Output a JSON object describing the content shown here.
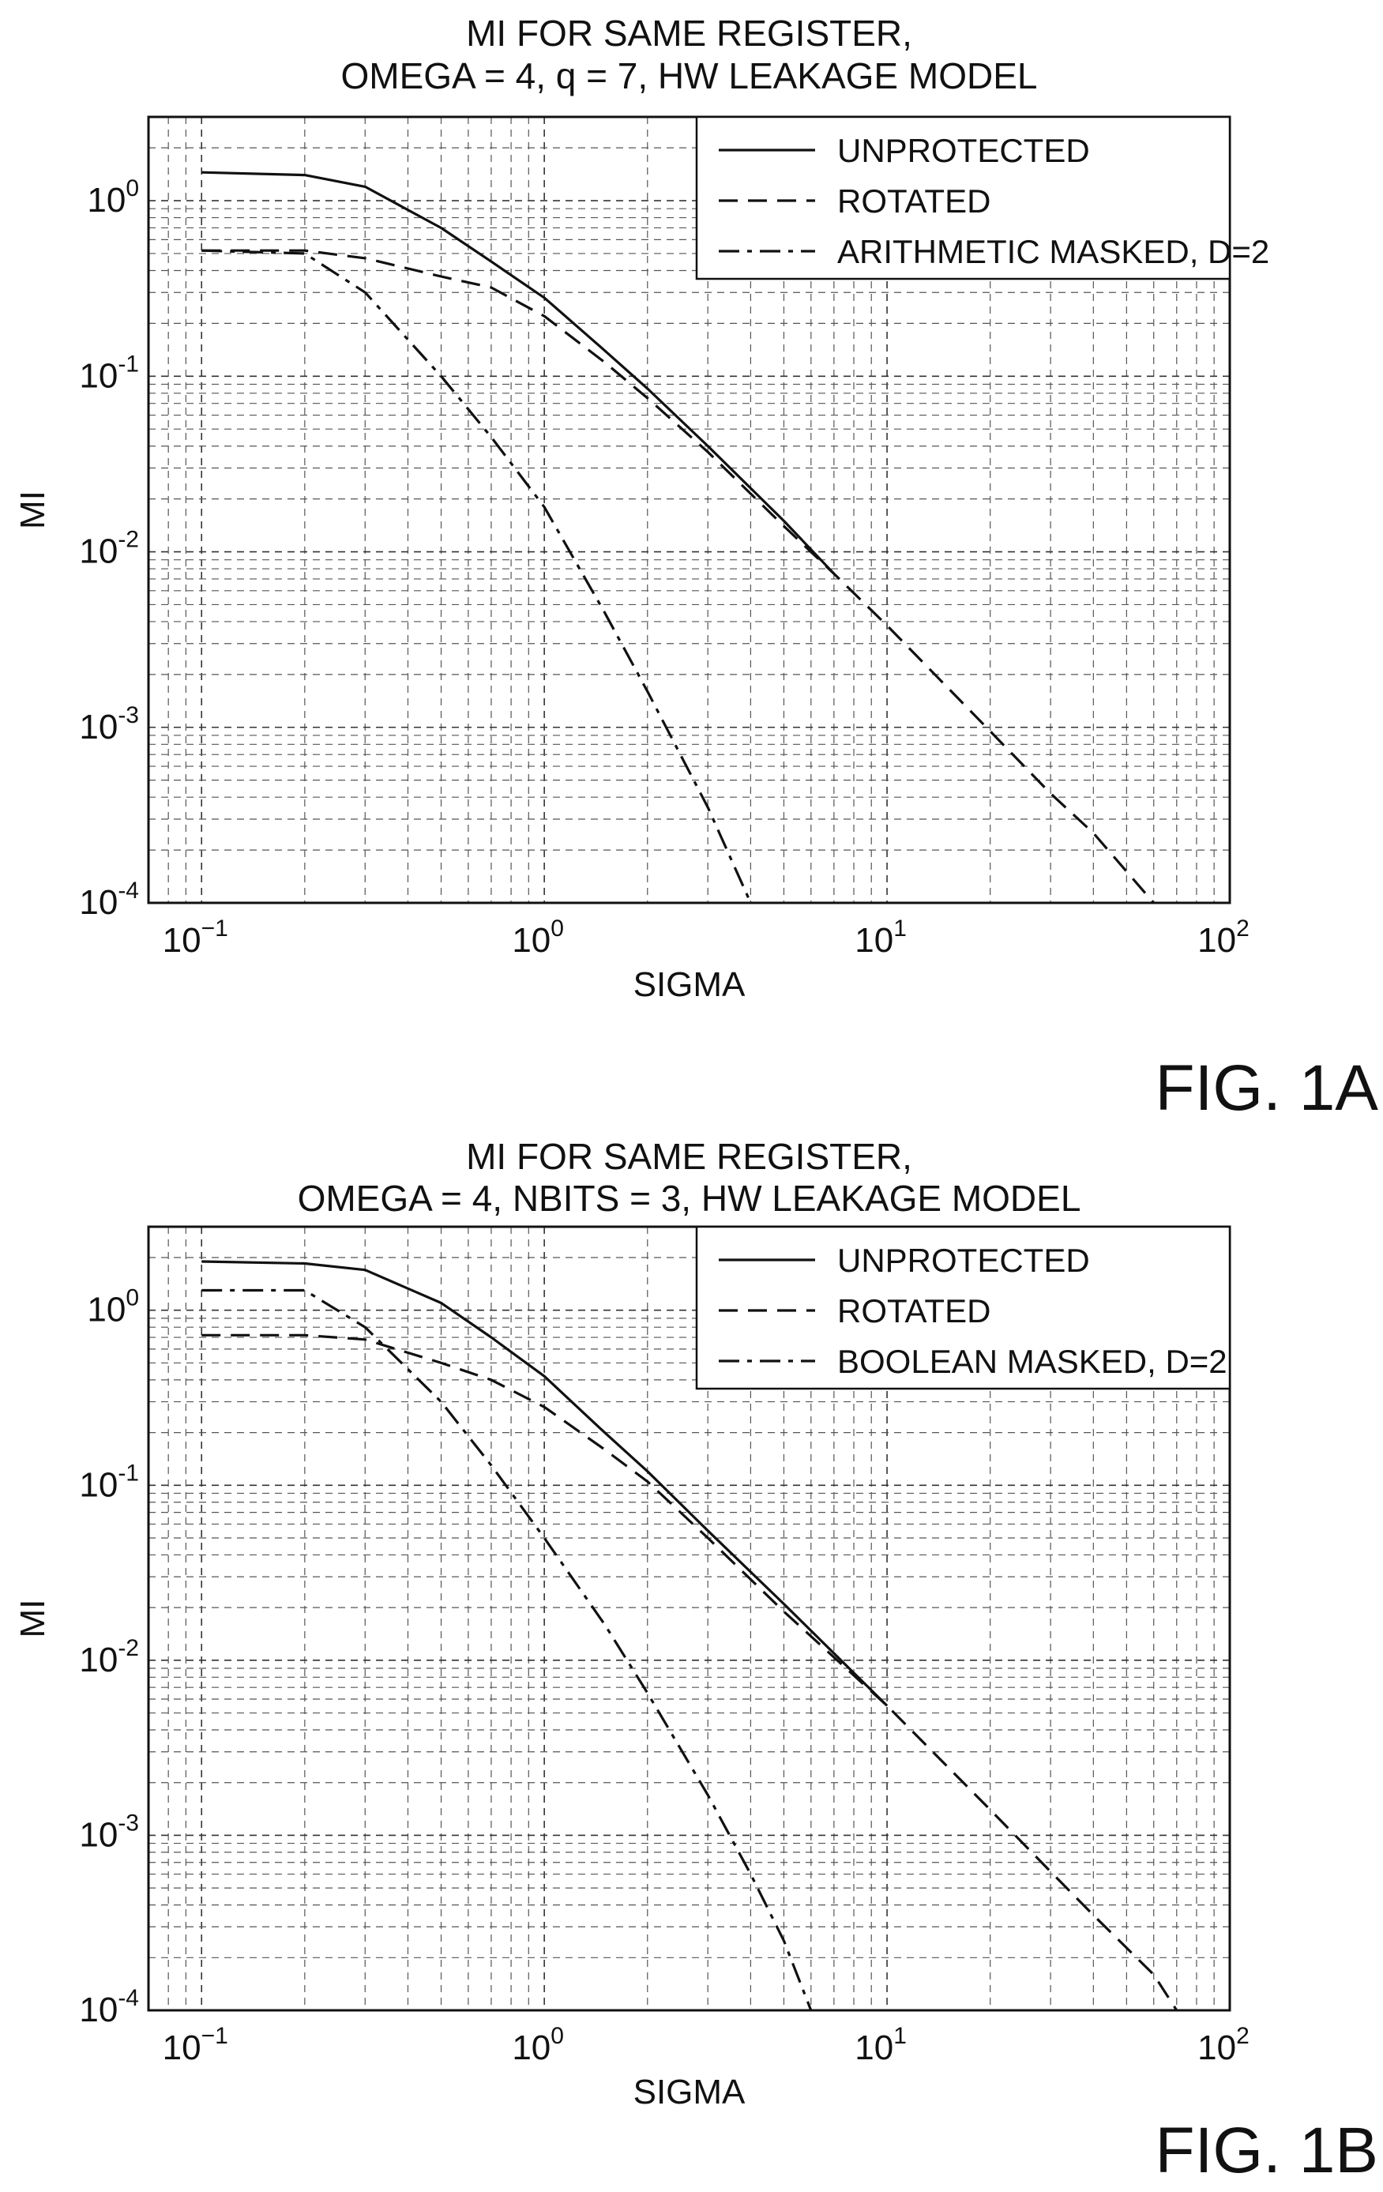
{
  "chart_data": [
    {
      "type": "line",
      "title": "MI FOR SAME REGISTER,",
      "subtitle": "OMEGA = 4, q = 7, HW LEAKAGE MODEL",
      "xlabel": "SIGMA",
      "ylabel": "MI",
      "x_scale": "log",
      "y_scale": "log",
      "xlim": [
        0.07,
        100
      ],
      "ylim": [
        0.0001,
        3
      ],
      "x_ticks": [
        {
          "value": 0.1,
          "base": "10",
          "exp": "−1"
        },
        {
          "value": 1,
          "base": "10",
          "exp": "0"
        },
        {
          "value": 10,
          "base": "10",
          "exp": "1"
        },
        {
          "value": 100,
          "base": "10",
          "exp": "2"
        }
      ],
      "y_ticks": [
        {
          "value": 1,
          "base": "10",
          "exp": "0"
        },
        {
          "value": 0.1,
          "base": "10",
          "exp": "-1"
        },
        {
          "value": 0.01,
          "base": "10",
          "exp": "-2"
        },
        {
          "value": 0.001,
          "base": "10",
          "exp": "-3"
        },
        {
          "value": 0.0001,
          "base": "10",
          "exp": "-4"
        }
      ],
      "grid": true,
      "legend_position": "top-right",
      "figure_label": "FIG. 1A",
      "series": [
        {
          "name": "UNPROTECTED",
          "style": "solid",
          "x": [
            0.1,
            0.2,
            0.3,
            0.5,
            0.7,
            1.0,
            1.5,
            2,
            3,
            5,
            7
          ],
          "y": [
            1.45,
            1.4,
            1.2,
            0.7,
            0.45,
            0.28,
            0.14,
            0.085,
            0.04,
            0.015,
            0.0075
          ]
        },
        {
          "name": "ROTATED",
          "style": "dashed",
          "x": [
            0.1,
            0.2,
            0.3,
            0.5,
            0.7,
            1.0,
            1.5,
            2,
            3,
            5,
            7,
            10,
            20,
            30,
            40,
            60
          ],
          "y": [
            0.52,
            0.52,
            0.47,
            0.37,
            0.32,
            0.22,
            0.12,
            0.075,
            0.037,
            0.014,
            0.0075,
            0.0038,
            0.00095,
            0.00042,
            0.00025,
            0.0001
          ]
        },
        {
          "name": "ARITHMETIC MASKED, D=2",
          "style": "dash-dot",
          "x": [
            0.1,
            0.2,
            0.3,
            0.5,
            0.7,
            1.0,
            1.5,
            2,
            3,
            4
          ],
          "y": [
            0.52,
            0.5,
            0.3,
            0.1,
            0.045,
            0.018,
            0.0045,
            0.0016,
            0.00035,
            0.0001
          ]
        }
      ]
    },
    {
      "type": "line",
      "title": "MI FOR SAME REGISTER,",
      "subtitle": "OMEGA = 4, NBITS = 3, HW LEAKAGE MODEL",
      "xlabel": "SIGMA",
      "ylabel": "MI",
      "x_scale": "log",
      "y_scale": "log",
      "xlim": [
        0.07,
        100
      ],
      "ylim": [
        0.0001,
        3
      ],
      "x_ticks": [
        {
          "value": 0.1,
          "base": "10",
          "exp": "−1"
        },
        {
          "value": 1,
          "base": "10",
          "exp": "0"
        },
        {
          "value": 10,
          "base": "10",
          "exp": "1"
        },
        {
          "value": 100,
          "base": "10",
          "exp": "2"
        }
      ],
      "y_ticks": [
        {
          "value": 1,
          "base": "10",
          "exp": "0"
        },
        {
          "value": 0.1,
          "base": "10",
          "exp": "-1"
        },
        {
          "value": 0.01,
          "base": "10",
          "exp": "-2"
        },
        {
          "value": 0.001,
          "base": "10",
          "exp": "-3"
        },
        {
          "value": 0.0001,
          "base": "10",
          "exp": "-4"
        }
      ],
      "grid": true,
      "legend_position": "top-right",
      "figure_label": "FIG. 1B",
      "series": [
        {
          "name": "UNPROTECTED",
          "style": "solid",
          "x": [
            0.1,
            0.2,
            0.3,
            0.5,
            0.7,
            1.0,
            1.5,
            2,
            3,
            5,
            10
          ],
          "y": [
            1.9,
            1.85,
            1.7,
            1.1,
            0.7,
            0.42,
            0.2,
            0.12,
            0.055,
            0.021,
            0.0055
          ]
        },
        {
          "name": "ROTATED",
          "style": "dashed",
          "x": [
            0.1,
            0.2,
            0.3,
            0.5,
            0.7,
            1.0,
            1.5,
            2,
            3,
            5,
            10,
            20,
            30,
            40,
            60,
            70
          ],
          "y": [
            0.72,
            0.72,
            0.68,
            0.5,
            0.4,
            0.28,
            0.16,
            0.105,
            0.05,
            0.019,
            0.0055,
            0.0014,
            0.00062,
            0.00035,
            0.00016,
            0.0001
          ]
        },
        {
          "name": "BOOLEAN MASKED, D=2",
          "style": "dash-dot",
          "x": [
            0.1,
            0.2,
            0.3,
            0.5,
            0.7,
            1.0,
            1.5,
            2,
            3,
            4,
            5,
            6
          ],
          "y": [
            1.3,
            1.3,
            0.8,
            0.3,
            0.13,
            0.05,
            0.016,
            0.0065,
            0.0017,
            0.0006,
            0.00025,
            0.0001
          ]
        }
      ]
    }
  ]
}
